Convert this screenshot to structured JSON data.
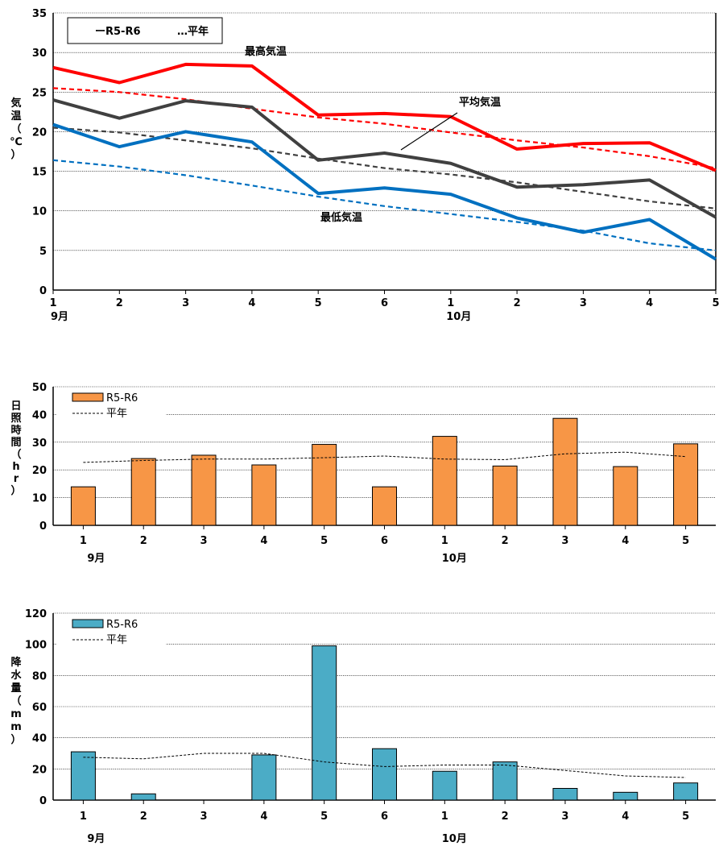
{
  "chart_data": [
    {
      "type": "line",
      "categories": [
        "1",
        "2",
        "3",
        "4",
        "5",
        "6",
        "1",
        "2",
        "3",
        "4",
        "5"
      ],
      "month_labels": [
        "9月",
        "10月"
      ],
      "ylabel": "気温（℃）",
      "ylim": [
        0,
        35
      ],
      "yticks": [
        0,
        5,
        10,
        15,
        20,
        25,
        30,
        35
      ],
      "grid": true,
      "legend": [
        "ーR5-R6",
        "…平年"
      ],
      "annotations": [
        "最高気温",
        "平均気温",
        "最低気温"
      ],
      "series": [
        {
          "name": "最高気温",
          "style": "solid",
          "color": "#ff0000",
          "values": [
            28.1,
            26.2,
            28.5,
            28.3,
            22.1,
            22.3,
            21.9,
            17.8,
            18.5,
            18.6,
            15.1
          ]
        },
        {
          "name": "最高気温",
          "style": "dashed",
          "color": "#ff0000",
          "values": [
            25.5,
            25.0,
            24.1,
            22.9,
            21.8,
            21.0,
            19.9,
            18.9,
            18.0,
            16.9,
            15.4
          ]
        },
        {
          "name": "平均気温",
          "style": "solid",
          "color": "#404040",
          "values": [
            24.0,
            21.7,
            23.9,
            23.1,
            16.4,
            17.3,
            16.0,
            13.0,
            13.3,
            13.9,
            9.2
          ]
        },
        {
          "name": "平均気温",
          "style": "dashed",
          "color": "#404040",
          "values": [
            20.5,
            19.9,
            18.9,
            17.9,
            16.6,
            15.4,
            14.6,
            13.6,
            12.4,
            11.2,
            10.3
          ]
        },
        {
          "name": "最低気温",
          "style": "solid",
          "color": "#0070c0",
          "values": [
            20.9,
            18.1,
            20.0,
            18.7,
            12.2,
            12.9,
            12.1,
            9.1,
            7.3,
            8.9,
            3.9
          ]
        },
        {
          "name": "最低気温",
          "style": "dashed",
          "color": "#0070c0",
          "values": [
            16.4,
            15.6,
            14.5,
            13.2,
            11.8,
            10.6,
            9.6,
            8.6,
            7.5,
            5.9,
            5.0
          ]
        }
      ]
    },
    {
      "type": "bar",
      "categories": [
        "1",
        "2",
        "3",
        "4",
        "5",
        "6",
        "1",
        "2",
        "3",
        "4",
        "5"
      ],
      "month_labels": [
        "9月",
        "10月"
      ],
      "ylabel": "日照時間（hr）",
      "ylim": [
        0,
        50
      ],
      "yticks": [
        0,
        10,
        20,
        30,
        40,
        50
      ],
      "grid": true,
      "legend": [
        "R5-R6",
        "平年"
      ],
      "series": [
        {
          "name": "R5-R6",
          "color": "#f79646",
          "values": [
            13.9,
            24.1,
            25.3,
            21.8,
            29.2,
            13.9,
            32.1,
            21.4,
            38.6,
            21.2,
            29.4
          ]
        },
        {
          "name": "平年",
          "style": "dashed",
          "color": "#000000",
          "values": [
            22.7,
            23.4,
            23.9,
            23.9,
            24.4,
            25.0,
            23.9,
            23.7,
            25.8,
            26.4,
            24.8
          ]
        }
      ]
    },
    {
      "type": "bar",
      "categories": [
        "1",
        "2",
        "3",
        "4",
        "5",
        "6",
        "1",
        "2",
        "3",
        "4",
        "5"
      ],
      "month_labels": [
        "9月",
        "10月"
      ],
      "ylabel": "降水量（mm）",
      "ylim": [
        0,
        120
      ],
      "yticks": [
        0,
        20,
        40,
        60,
        80,
        100,
        120
      ],
      "grid": true,
      "legend": [
        "R5-R6",
        "平年"
      ],
      "series": [
        {
          "name": "R5-R6",
          "color": "#4bacc6",
          "values": [
            31,
            4,
            0,
            29,
            99,
            33,
            18.5,
            24.5,
            7.5,
            5,
            11
          ]
        },
        {
          "name": "平年",
          "style": "dashed",
          "color": "#000000",
          "values": [
            27.5,
            26.5,
            30,
            30,
            24.5,
            21.5,
            22.5,
            22.5,
            19,
            15.5,
            14.5
          ]
        }
      ]
    }
  ]
}
